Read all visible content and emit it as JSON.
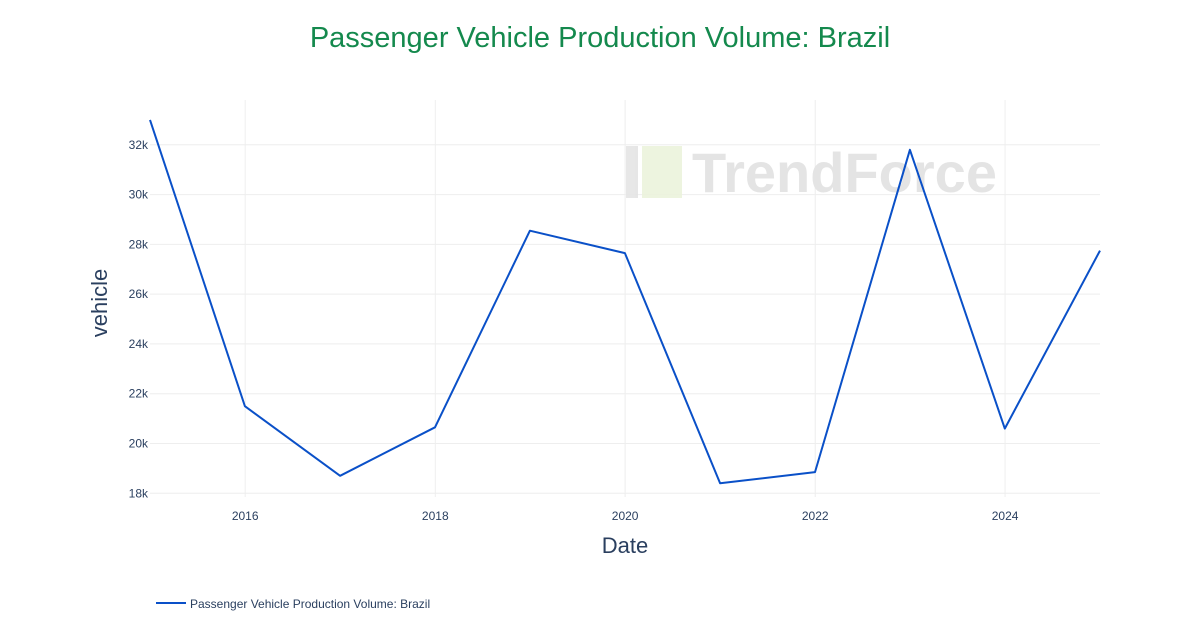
{
  "chart_data": {
    "type": "line",
    "title": "Passenger Vehicle Production Volume: Brazil",
    "xlabel": "Date",
    "ylabel": "vehicle",
    "x_ticks": [
      "2016",
      "2018",
      "2020",
      "2022",
      "2024"
    ],
    "y_ticks": [
      "18k",
      "20k",
      "22k",
      "24k",
      "26k",
      "28k",
      "30k",
      "32k"
    ],
    "y_tick_values": [
      18000,
      20000,
      22000,
      24000,
      26000,
      28000,
      30000,
      32000
    ],
    "xlim": [
      "2014-12-31",
      "2024-12-31"
    ],
    "ylim": [
      17850,
      33800
    ],
    "grid": true,
    "legend_position": "bottom-left",
    "series": [
      {
        "name": "Passenger Vehicle Production Volume: Brazil",
        "color": "#0a50c8",
        "x": [
          "2014-12-31",
          "2015-12-31",
          "2016-12-31",
          "2017-12-31",
          "2018-12-31",
          "2019-12-31",
          "2020-12-31",
          "2021-12-31",
          "2022-12-31",
          "2023-12-31",
          "2024-12-31"
        ],
        "y": [
          33000,
          21500,
          18700,
          20650,
          28550,
          27650,
          18400,
          18850,
          31800,
          20600,
          27750
        ]
      }
    ],
    "watermark": "TrendForce"
  },
  "colors": {
    "title": "#14894d",
    "grid": "#eeeeee",
    "text": "#2a3f5f"
  }
}
